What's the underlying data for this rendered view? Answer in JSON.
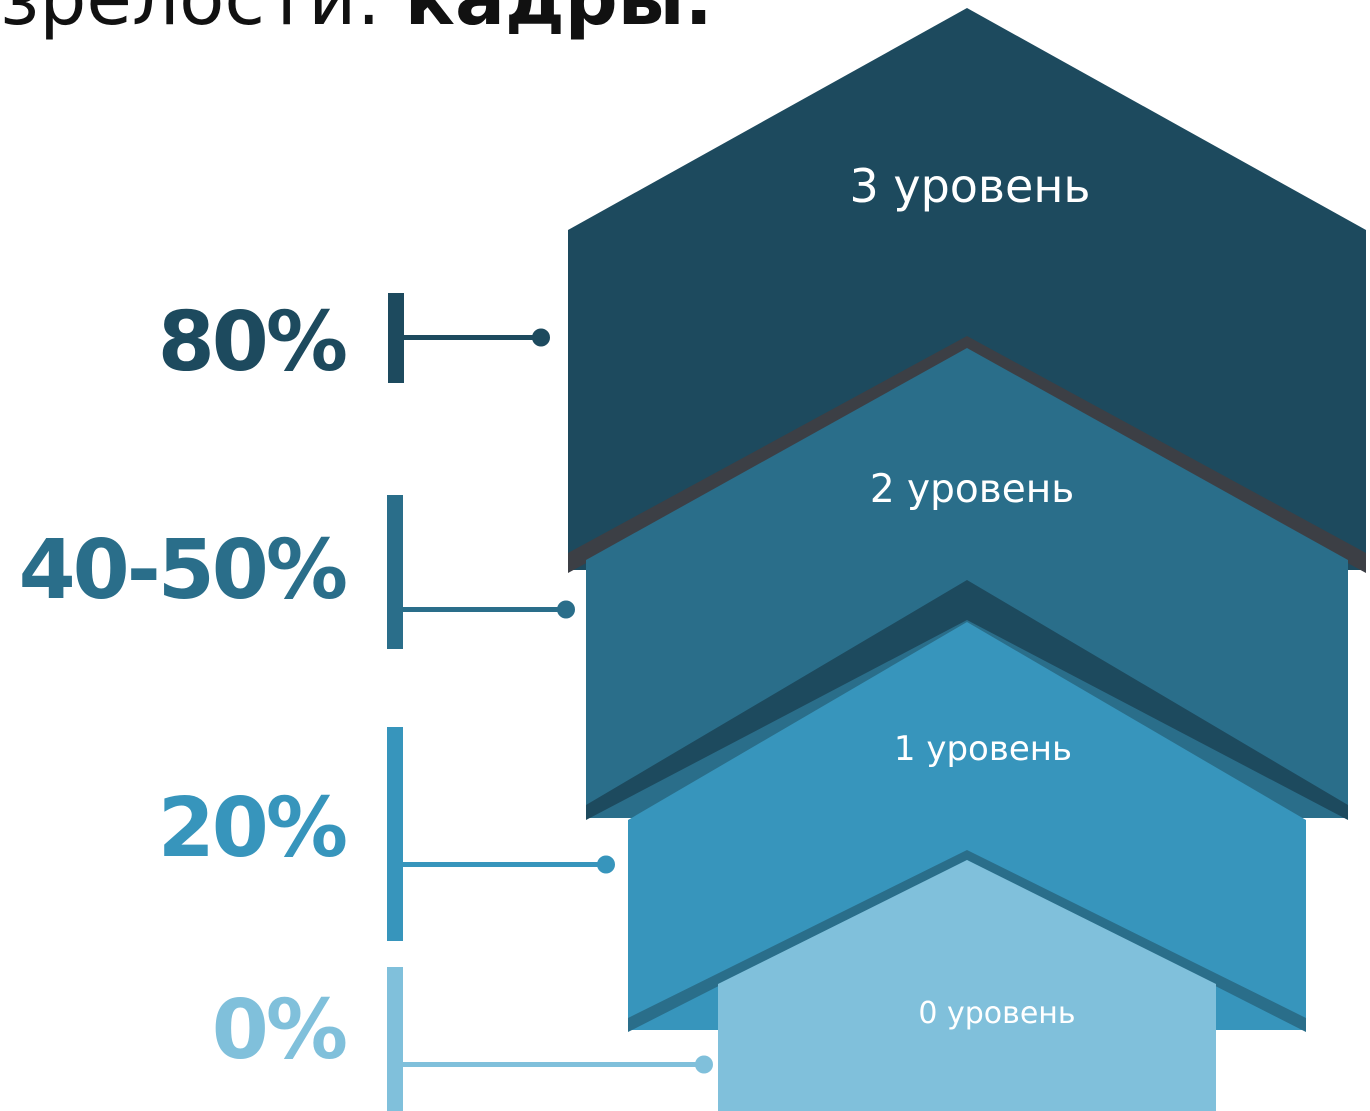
{
  "title": {
    "prefix": "зрелости:",
    "bold": "кадры."
  },
  "colors": {
    "level3": "#1d4a5e",
    "level2": "#2a6e8a",
    "level1": "#3795bc",
    "level0": "#80c0db",
    "separator": "#3c3f45"
  },
  "levels": [
    {
      "label": "3 уровень",
      "percent": "80%"
    },
    {
      "label": "2 уровень",
      "percent": "40-50%"
    },
    {
      "label": "1 уровень",
      "percent": "20%"
    },
    {
      "label": "0 уровень",
      "percent": "0%"
    }
  ]
}
